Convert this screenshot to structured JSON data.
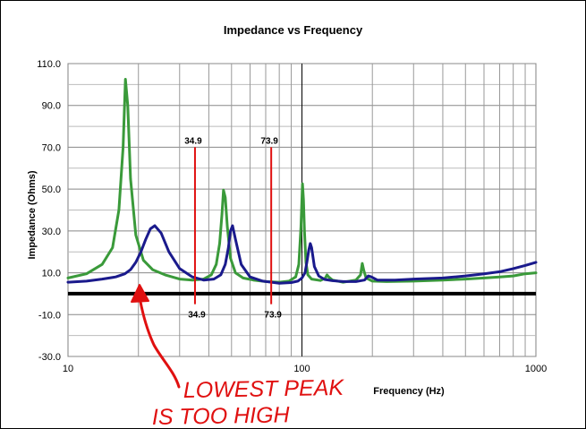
{
  "chart_data": {
    "type": "line",
    "title": "Impedance vs Frequency",
    "xlabel": "Frequency (Hz)",
    "ylabel": "Impedance (Ohms)",
    "xscale": "log",
    "xlim": [
      10,
      1000
    ],
    "ylim": [
      -30,
      110
    ],
    "x_ticks": [
      "10",
      "100",
      "1000"
    ],
    "y_ticks": [
      "110.0",
      "90.0",
      "70.0",
      "50.0",
      "30.0",
      "10.0",
      "-10.0",
      "-30.0"
    ],
    "grid": true,
    "series": [
      {
        "color": "#3a9a3a",
        "x": [
          10,
          12,
          14,
          15.5,
          16.5,
          17.2,
          17.6,
          18.0,
          18.5,
          19.5,
          21,
          23,
          26,
          30,
          34,
          38,
          41,
          43,
          44.5,
          45.5,
          46.2,
          47.0,
          48.0,
          49.5,
          52,
          56,
          62,
          70,
          80,
          88,
          94,
          97,
          99,
          100.5,
          101.5,
          102.5,
          104,
          106,
          110,
          120,
          126,
          128,
          130,
          135,
          150,
          170,
          178,
          181,
          184,
          188,
          200,
          230,
          300,
          400,
          500,
          600,
          700,
          800,
          900,
          1000
        ],
        "y": [
          7.5,
          9.5,
          14,
          22,
          40,
          70,
          102.5,
          90,
          55,
          28,
          16,
          11.5,
          9,
          7,
          6.5,
          7,
          9,
          14,
          24,
          38,
          49.5,
          46,
          32,
          17,
          10,
          7.5,
          6.5,
          5.8,
          5.5,
          6,
          8,
          14,
          32,
          52.5,
          45,
          30,
          15,
          9,
          7,
          6.3,
          7.5,
          9,
          8,
          6.5,
          5.5,
          6.5,
          9,
          14.5,
          11,
          7.5,
          6,
          5.8,
          6,
          6.5,
          7,
          7.5,
          8,
          8.5,
          9.5,
          10
        ]
      },
      {
        "color": "#1a1a8c",
        "x": [
          10,
          12,
          14,
          16,
          17.5,
          18.5,
          19.5,
          20.5,
          21.5,
          22.5,
          23.5,
          25,
          27,
          30,
          34,
          38,
          42,
          45,
          47,
          48.5,
          49.5,
          50.5,
          52,
          55,
          60,
          68,
          80,
          90,
          96,
          100,
          103,
          105,
          107,
          108.5,
          110,
          113,
          118,
          125,
          135,
          150,
          170,
          185,
          192,
          198,
          210,
          250,
          300,
          400,
          500,
          600,
          700,
          800,
          900,
          1000
        ],
        "y": [
          5.5,
          6,
          7,
          8,
          9.5,
          11.5,
          15,
          20,
          26,
          31,
          32.5,
          29,
          20,
          12,
          8,
          6.5,
          7,
          9,
          14,
          22,
          30,
          32.5,
          26,
          14,
          8,
          6,
          5,
          5.3,
          6,
          7.5,
          10,
          15,
          21,
          24,
          22,
          13,
          8.5,
          6.8,
          6.2,
          5.8,
          5.8,
          6.5,
          8.5,
          8,
          6.5,
          6.5,
          7,
          7.5,
          8.5,
          9.5,
          10.5,
          12,
          13.5,
          15
        ]
      }
    ],
    "markers": [
      {
        "x": 34.9,
        "label": "34.9",
        "y_from": -5,
        "y_to": 70
      },
      {
        "x": 73.9,
        "label": "73.9",
        "y_from": -5,
        "y_to": 70
      }
    ],
    "annotation": {
      "lines": [
        "LOWEST PEAK",
        "IS TOO HIGH"
      ],
      "color": "#e01010"
    }
  }
}
